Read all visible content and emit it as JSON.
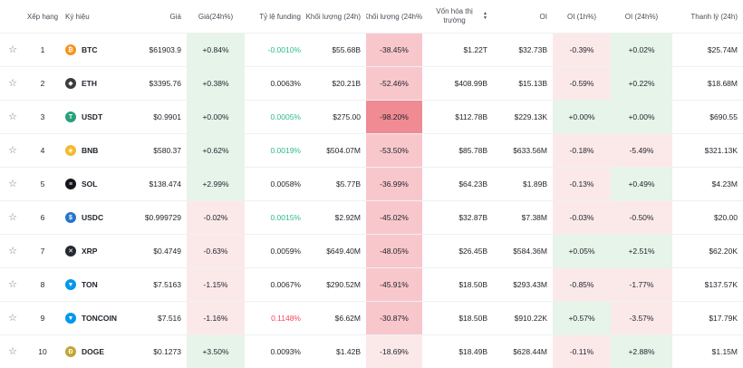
{
  "colors": {
    "positive_bg": "#e6f4ea",
    "negative_light_bg": "#fbe9ea",
    "negative_mid_bg": "#f8c7cc",
    "negative_strong_bg": "#f08b93",
    "funding_positive": "#2ebd85",
    "funding_negative": "#f6465d",
    "coins": {
      "BTC": "#f7931a",
      "ETH": "#3c3c3d",
      "USDT": "#26a17b",
      "BNB": "#f3ba2f",
      "SOL": "#14151a",
      "USDC": "#2775ca",
      "XRP": "#23292f",
      "TON": "#0098ea",
      "TONCOIN": "#0098ea",
      "DOGE": "#c2a633"
    }
  },
  "headers": {
    "rank": "Xếp hạng",
    "symbol": "Ký hiệu",
    "price": "Giá",
    "price_change": "Giá(24h%)",
    "funding": "Tỷ lệ funding",
    "volume": "Khối lượng (24h)",
    "volume_change": "Khối lượng (24h%)",
    "market_cap": "Vốn hóa thị trường",
    "oi": "OI",
    "oi_1h": "OI (1h%)",
    "oi_24h": "OI (24h%)",
    "liquidation": "Thanh lý (24h)"
  },
  "rows": [
    {
      "rank": "1",
      "symbol": "BTC",
      "icon": "btc-icon",
      "glyph": "₿",
      "price": "$61903.9",
      "price_change": "+0.84%",
      "pc_tone": "pos",
      "funding": "-0.0010%",
      "fund_tone": "pos",
      "volume": "$55.68B",
      "volume_change": "-38.45%",
      "vc_tone": "mid",
      "market_cap": "$1.22T",
      "oi": "$32.73B",
      "oi_1h": "-0.39%",
      "oi1_tone": "neg",
      "oi_24h": "+0.02%",
      "oi24_tone": "pos",
      "liquidation": "$25.74M"
    },
    {
      "rank": "2",
      "symbol": "ETH",
      "icon": "eth-icon",
      "glyph": "◆",
      "price": "$3395.76",
      "price_change": "+0.38%",
      "pc_tone": "pos",
      "funding": "0.0063%",
      "fund_tone": "plain",
      "volume": "$20.21B",
      "volume_change": "-52.46%",
      "vc_tone": "mid",
      "market_cap": "$408.99B",
      "oi": "$15.13B",
      "oi_1h": "-0.59%",
      "oi1_tone": "neg",
      "oi_24h": "+0.22%",
      "oi24_tone": "pos",
      "liquidation": "$18.68M"
    },
    {
      "rank": "3",
      "symbol": "USDT",
      "icon": "usdt-icon",
      "glyph": "T",
      "price": "$0.9901",
      "price_change": "+0.00%",
      "pc_tone": "pos",
      "funding": "0.0005%",
      "fund_tone": "pos",
      "volume": "$275.00",
      "volume_change": "-98.20%",
      "vc_tone": "strong",
      "market_cap": "$112.78B",
      "oi": "$229.13K",
      "oi_1h": "+0.00%",
      "oi1_tone": "pos",
      "oi_24h": "+0.00%",
      "oi24_tone": "pos",
      "liquidation": "$690.55"
    },
    {
      "rank": "4",
      "symbol": "BNB",
      "icon": "bnb-icon",
      "glyph": "◈",
      "price": "$580.37",
      "price_change": "+0.62%",
      "pc_tone": "pos",
      "funding": "0.0019%",
      "fund_tone": "pos",
      "volume": "$504.07M",
      "volume_change": "-53.50%",
      "vc_tone": "mid",
      "market_cap": "$85.78B",
      "oi": "$633.56M",
      "oi_1h": "-0.18%",
      "oi1_tone": "neg",
      "oi_24h": "-5.49%",
      "oi24_tone": "neg",
      "liquidation": "$321.13K"
    },
    {
      "rank": "5",
      "symbol": "SOL",
      "icon": "sol-icon",
      "glyph": "≡",
      "price": "$138.474",
      "price_change": "+2.99%",
      "pc_tone": "pos",
      "funding": "0.0058%",
      "fund_tone": "plain",
      "volume": "$5.77B",
      "volume_change": "-36.99%",
      "vc_tone": "mid",
      "market_cap": "$64.23B",
      "oi": "$1.89B",
      "oi_1h": "-0.13%",
      "oi1_tone": "neg",
      "oi_24h": "+0.49%",
      "oi24_tone": "pos",
      "liquidation": "$4.23M"
    },
    {
      "rank": "6",
      "symbol": "USDC",
      "icon": "usdc-icon",
      "glyph": "$",
      "price": "$0.999729",
      "price_change": "-0.02%",
      "pc_tone": "neg",
      "funding": "0.0015%",
      "fund_tone": "pos",
      "volume": "$2.92M",
      "volume_change": "-45.02%",
      "vc_tone": "mid",
      "market_cap": "$32.87B",
      "oi": "$7.38M",
      "oi_1h": "-0.03%",
      "oi1_tone": "neg",
      "oi_24h": "-0.50%",
      "oi24_tone": "neg",
      "liquidation": "$20.00"
    },
    {
      "rank": "7",
      "symbol": "XRP",
      "icon": "xrp-icon",
      "glyph": "✕",
      "price": "$0.4749",
      "price_change": "-0.63%",
      "pc_tone": "neg",
      "funding": "0.0059%",
      "fund_tone": "plain",
      "volume": "$649.40M",
      "volume_change": "-48.05%",
      "vc_tone": "mid",
      "market_cap": "$26.45B",
      "oi": "$584.36M",
      "oi_1h": "+0.05%",
      "oi1_tone": "pos",
      "oi_24h": "+2.51%",
      "oi24_tone": "pos",
      "liquidation": "$62.20K"
    },
    {
      "rank": "8",
      "symbol": "TON",
      "icon": "ton-icon",
      "glyph": "▼",
      "price": "$7.5163",
      "price_change": "-1.15%",
      "pc_tone": "neg",
      "funding": "0.0067%",
      "fund_tone": "plain",
      "volume": "$290.52M",
      "volume_change": "-45.91%",
      "vc_tone": "mid",
      "market_cap": "$18.50B",
      "oi": "$293.43M",
      "oi_1h": "-0.85%",
      "oi1_tone": "neg",
      "oi_24h": "-1.77%",
      "oi24_tone": "neg",
      "liquidation": "$137.57K"
    },
    {
      "rank": "9",
      "symbol": "TONCOIN",
      "icon": "toncoin-icon",
      "glyph": "▼",
      "price": "$7.516",
      "price_change": "-1.16%",
      "pc_tone": "neg",
      "funding": "0.1148%",
      "fund_tone": "neg",
      "volume": "$6.62M",
      "volume_change": "-30.87%",
      "vc_tone": "mid",
      "market_cap": "$18.50B",
      "oi": "$910.22K",
      "oi_1h": "+0.57%",
      "oi1_tone": "pos",
      "oi_24h": "-3.57%",
      "oi24_tone": "neg",
      "liquidation": "$17.79K"
    },
    {
      "rank": "10",
      "symbol": "DOGE",
      "icon": "doge-icon",
      "glyph": "Ð",
      "price": "$0.1273",
      "price_change": "+3.50%",
      "pc_tone": "pos",
      "funding": "0.0093%",
      "fund_tone": "plain",
      "volume": "$1.42B",
      "volume_change": "-18.69%",
      "vc_tone": "light",
      "market_cap": "$18.49B",
      "oi": "$628.44M",
      "oi_1h": "-0.11%",
      "oi1_tone": "neg",
      "oi_24h": "+2.88%",
      "oi24_tone": "pos",
      "liquidation": "$1.15M"
    }
  ]
}
